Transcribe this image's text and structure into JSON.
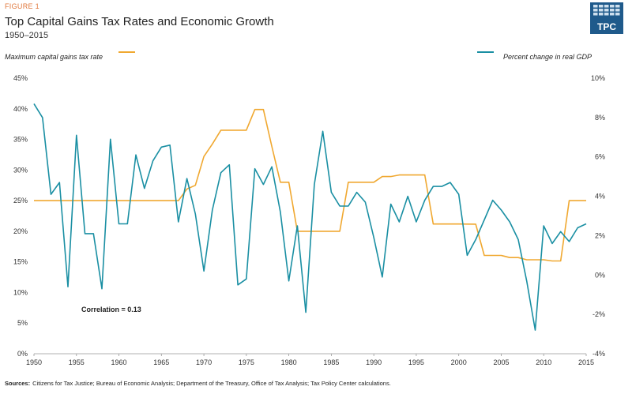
{
  "figure_label": "FIGURE 1",
  "logo": {
    "text": "TPC",
    "color": "#1f5a8b"
  },
  "chart_data": {
    "type": "line",
    "title": "Top Capital Gains Tax Rates and Economic Growth",
    "subtitle": "1950–2015",
    "x": [
      1950,
      1951,
      1952,
      1953,
      1954,
      1955,
      1956,
      1957,
      1958,
      1959,
      1960,
      1961,
      1962,
      1963,
      1964,
      1965,
      1966,
      1967,
      1968,
      1969,
      1970,
      1971,
      1972,
      1973,
      1974,
      1975,
      1976,
      1977,
      1978,
      1979,
      1980,
      1981,
      1982,
      1983,
      1984,
      1985,
      1986,
      1987,
      1988,
      1989,
      1990,
      1991,
      1992,
      1993,
      1994,
      1995,
      1996,
      1997,
      1998,
      1999,
      2000,
      2001,
      2002,
      2003,
      2004,
      2005,
      2006,
      2007,
      2008,
      2009,
      2010,
      2011,
      2012,
      2013,
      2014,
      2015
    ],
    "xlim": [
      1950,
      2015
    ],
    "xticks": [
      "1950",
      "1955",
      "1960",
      "1965",
      "1970",
      "1975",
      "1980",
      "1985",
      "1990",
      "1995",
      "2000",
      "2005",
      "2010",
      "2015"
    ],
    "left_axis": {
      "label": "Maximum capital gains tax rate",
      "ylim": [
        0,
        45
      ],
      "ticks": [
        "0%",
        "5%",
        "10%",
        "15%",
        "20%",
        "25%",
        "30%",
        "35%",
        "40%",
        "45%"
      ]
    },
    "right_axis": {
      "label": "Percent change in real GDP",
      "ylim": [
        -4,
        10
      ],
      "ticks": [
        "-4%",
        "-2%",
        "0%",
        "2%",
        "4%",
        "6%",
        "8%",
        "10%"
      ]
    },
    "grid": false,
    "legend_position": "top",
    "series": [
      {
        "name": "Maximum capital gains tax rate",
        "axis": "left",
        "color": "#f0a830",
        "values": [
          25,
          25,
          25,
          25,
          25,
          25,
          25,
          25,
          25,
          25,
          25,
          25,
          25,
          25,
          25,
          25,
          25,
          25,
          26.9,
          27.5,
          32.21,
          34.25,
          36.5,
          36.5,
          36.5,
          36.5,
          39.875,
          39.875,
          33.85,
          28,
          28,
          20,
          20,
          20,
          20,
          20,
          20,
          28,
          28,
          28,
          28,
          28.93,
          28.93,
          29.19,
          29.19,
          29.19,
          29.19,
          21.19,
          21.19,
          21.19,
          21.19,
          21.17,
          21.16,
          16.05,
          16.05,
          16.05,
          15.7,
          15.7,
          15.35,
          15.35,
          15.35,
          15.15,
          15.15,
          25,
          25,
          25
        ]
      },
      {
        "name": "Percent change in real GDP",
        "axis": "right",
        "color": "#1a8fa3",
        "values": [
          8.7,
          8.0,
          4.1,
          4.7,
          -0.6,
          7.1,
          2.1,
          2.1,
          -0.7,
          6.9,
          2.6,
          2.6,
          6.1,
          4.4,
          5.8,
          6.5,
          6.6,
          2.7,
          4.9,
          3.1,
          0.2,
          3.3,
          5.2,
          5.6,
          -0.5,
          -0.2,
          5.4,
          4.6,
          5.5,
          3.2,
          -0.3,
          2.5,
          -1.9,
          4.6,
          7.3,
          4.2,
          3.5,
          3.5,
          4.2,
          3.7,
          1.9,
          -0.1,
          3.6,
          2.7,
          4.0,
          2.7,
          3.8,
          4.5,
          4.5,
          4.7,
          4.1,
          1.0,
          1.8,
          2.8,
          3.8,
          3.3,
          2.7,
          1.8,
          -0.3,
          -2.8,
          2.5,
          1.6,
          2.2,
          1.7,
          2.4,
          2.6
        ]
      }
    ],
    "annotations": [
      "Correlation = 0.13"
    ]
  },
  "source_label": "Sources:",
  "source_text": "Citizens for Tax Justice; Bureau of Economic Analysis; Department of the Treasury, Office of Tax Analysis; Tax Policy Center calculations."
}
